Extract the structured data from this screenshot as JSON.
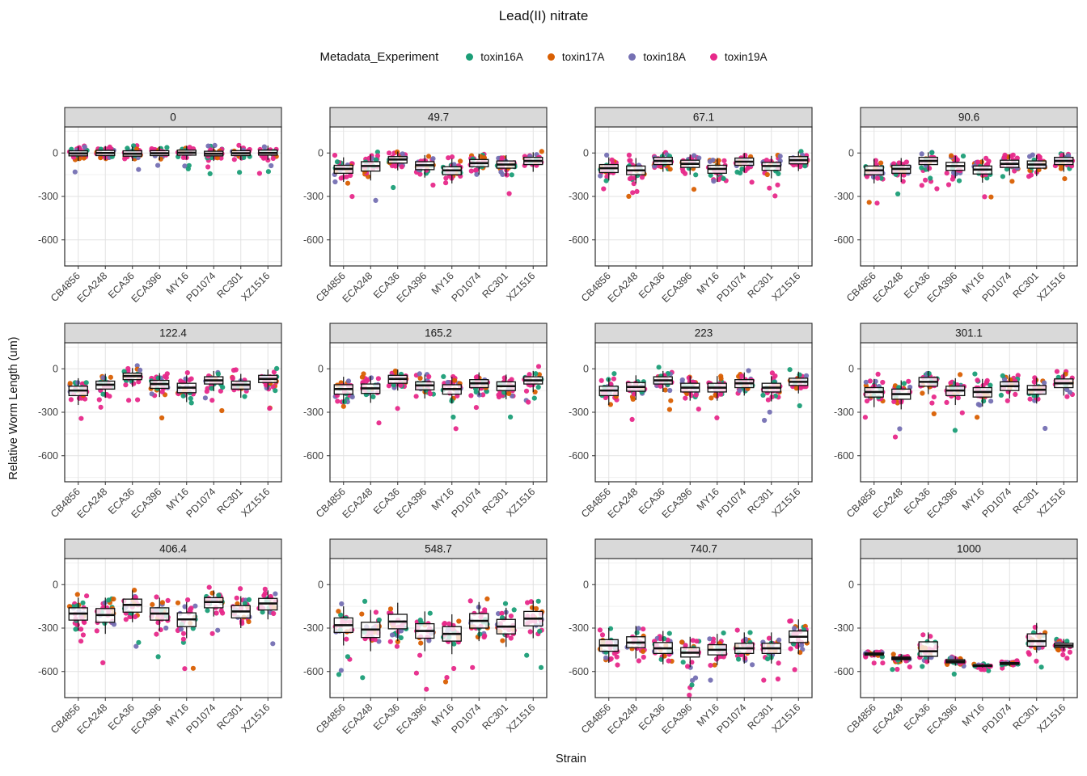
{
  "chart_data": {
    "type": "boxplot",
    "title": "Lead(II) nitrate",
    "xlabel": "Strain",
    "ylabel": "Relative Worm Length (um)",
    "legend": {
      "title": "Metadata_Experiment",
      "entries": [
        {
          "label": "toxin16A",
          "color": "#1B9E77"
        },
        {
          "label": "toxin17A",
          "color": "#D95F02"
        },
        {
          "label": "toxin18A",
          "color": "#7570B3"
        },
        {
          "label": "toxin19A",
          "color": "#E7298A"
        }
      ]
    },
    "strains": [
      "CB4856",
      "ECA248",
      "ECA36",
      "ECA396",
      "MY16",
      "PD1074",
      "RC301",
      "XZ1516"
    ],
    "yticks": [
      0,
      -300,
      -600
    ],
    "yticks_minor": [
      150,
      -150,
      -450,
      -750
    ],
    "ylim": [
      -780,
      180
    ],
    "grid": true,
    "stats_format": [
      "whisker_low",
      "q1",
      "median",
      "q3",
      "whisker_high"
    ],
    "facets": [
      {
        "label": "0",
        "stats": [
          [
            -55,
            -20,
            -3,
            15,
            45
          ],
          [
            -50,
            -18,
            0,
            18,
            48
          ],
          [
            -55,
            -22,
            -5,
            15,
            45
          ],
          [
            -50,
            -18,
            -2,
            16,
            46
          ],
          [
            -45,
            -15,
            2,
            20,
            50
          ],
          [
            -55,
            -20,
            -5,
            12,
            42
          ],
          [
            -50,
            -18,
            -2,
            16,
            46
          ],
          [
            -48,
            -15,
            0,
            20,
            50
          ]
        ]
      },
      {
        "label": "49.7",
        "stats": [
          [
            -200,
            -140,
            -110,
            -85,
            -30
          ],
          [
            -190,
            -125,
            -90,
            -60,
            -10
          ],
          [
            -120,
            -70,
            -45,
            -25,
            10
          ],
          [
            -170,
            -115,
            -85,
            -60,
            -15
          ],
          [
            -210,
            -150,
            -120,
            -95,
            -40
          ],
          [
            -150,
            -95,
            -70,
            -45,
            -5
          ],
          [
            -160,
            -105,
            -80,
            -55,
            -15
          ],
          [
            -130,
            -80,
            -55,
            -30,
            5
          ]
        ]
      },
      {
        "label": "67.1",
        "stats": [
          [
            -190,
            -135,
            -105,
            -80,
            -30
          ],
          [
            -210,
            -150,
            -120,
            -90,
            -35
          ],
          [
            -130,
            -80,
            -55,
            -30,
            5
          ],
          [
            -150,
            -100,
            -75,
            -50,
            -10
          ],
          [
            -200,
            -140,
            -110,
            -85,
            -35
          ],
          [
            -135,
            -85,
            -60,
            -35,
            0
          ],
          [
            -175,
            -120,
            -90,
            -65,
            -20
          ],
          [
            -125,
            -75,
            -50,
            -25,
            10
          ]
        ]
      },
      {
        "label": "90.6",
        "stats": [
          [
            -210,
            -150,
            -120,
            -90,
            -40
          ],
          [
            -200,
            -140,
            -110,
            -85,
            -35
          ],
          [
            -130,
            -80,
            -55,
            -30,
            5
          ],
          [
            -175,
            -120,
            -90,
            -65,
            -20
          ],
          [
            -205,
            -145,
            -115,
            -90,
            -40
          ],
          [
            -155,
            -100,
            -75,
            -50,
            -10
          ],
          [
            -160,
            -105,
            -80,
            -55,
            -15
          ],
          [
            -130,
            -80,
            -55,
            -30,
            5
          ]
        ]
      },
      {
        "label": "122.4",
        "stats": [
          [
            -250,
            -185,
            -150,
            -120,
            -65
          ],
          [
            -200,
            -140,
            -110,
            -85,
            -35
          ],
          [
            -125,
            -75,
            -50,
            -30,
            5
          ],
          [
            -195,
            -135,
            -105,
            -80,
            -30
          ],
          [
            -230,
            -165,
            -130,
            -100,
            -45
          ],
          [
            -155,
            -105,
            -80,
            -55,
            -15
          ],
          [
            -200,
            -140,
            -110,
            -85,
            -35
          ],
          [
            -145,
            -95,
            -70,
            -45,
            -5
          ]
        ]
      },
      {
        "label": "165.2",
        "stats": [
          [
            -240,
            -175,
            -140,
            -110,
            -55
          ],
          [
            -235,
            -170,
            -135,
            -105,
            -50
          ],
          [
            -150,
            -100,
            -70,
            -45,
            -5
          ],
          [
            -205,
            -145,
            -115,
            -90,
            -40
          ],
          [
            -240,
            -175,
            -140,
            -110,
            -55
          ],
          [
            -185,
            -130,
            -100,
            -75,
            -25
          ],
          [
            -210,
            -150,
            -120,
            -90,
            -40
          ],
          [
            -160,
            -105,
            -80,
            -55,
            -15
          ]
        ]
      },
      {
        "label": "223",
        "stats": [
          [
            -250,
            -185,
            -150,
            -120,
            -65
          ],
          [
            -215,
            -155,
            -125,
            -95,
            -45
          ],
          [
            -160,
            -105,
            -80,
            -55,
            -15
          ],
          [
            -220,
            -160,
            -130,
            -100,
            -50
          ],
          [
            -220,
            -160,
            -130,
            -100,
            -50
          ],
          [
            -185,
            -130,
            -100,
            -75,
            -25
          ],
          [
            -225,
            -160,
            -130,
            -100,
            -50
          ],
          [
            -170,
            -115,
            -90,
            -65,
            -20
          ]
        ]
      },
      {
        "label": "301.1",
        "stats": [
          [
            -265,
            -195,
            -160,
            -130,
            -70
          ],
          [
            -280,
            -210,
            -175,
            -140,
            -80
          ],
          [
            -175,
            -120,
            -90,
            -60,
            -15
          ],
          [
            -250,
            -185,
            -150,
            -120,
            -65
          ],
          [
            -260,
            -195,
            -160,
            -130,
            -70
          ],
          [
            -205,
            -150,
            -120,
            -90,
            -40
          ],
          [
            -240,
            -175,
            -145,
            -115,
            -60
          ],
          [
            -185,
            -130,
            -100,
            -70,
            -25
          ]
        ]
      },
      {
        "label": "406.4",
        "stats": [
          [
            -320,
            -245,
            -200,
            -160,
            -90
          ],
          [
            -340,
            -260,
            -210,
            -165,
            -90
          ],
          [
            -260,
            -190,
            -140,
            -100,
            -40
          ],
          [
            -320,
            -245,
            -200,
            -160,
            -90
          ],
          [
            -370,
            -290,
            -240,
            -195,
            -120
          ],
          [
            -220,
            -160,
            -120,
            -90,
            -40
          ],
          [
            -300,
            -230,
            -185,
            -145,
            -80
          ],
          [
            -240,
            -175,
            -130,
            -95,
            -40
          ]
        ]
      },
      {
        "label": "548.7",
        "stats": [
          [
            -420,
            -330,
            -280,
            -230,
            -150
          ],
          [
            -460,
            -365,
            -310,
            -260,
            -175
          ],
          [
            -390,
            -305,
            -255,
            -205,
            -125
          ],
          [
            -460,
            -370,
            -320,
            -270,
            -185
          ],
          [
            -480,
            -390,
            -340,
            -290,
            -205
          ],
          [
            -390,
            -300,
            -250,
            -200,
            -120
          ],
          [
            -430,
            -340,
            -290,
            -240,
            -160
          ],
          [
            -370,
            -285,
            -235,
            -185,
            -110
          ]
        ]
      },
      {
        "label": "740.7",
        "stats": [
          [
            -540,
            -460,
            -420,
            -380,
            -300
          ],
          [
            -510,
            -435,
            -400,
            -360,
            -285
          ],
          [
            -550,
            -475,
            -440,
            -400,
            -320
          ],
          [
            -570,
            -500,
            -470,
            -435,
            -360
          ],
          [
            -555,
            -485,
            -450,
            -415,
            -340
          ],
          [
            -545,
            -475,
            -440,
            -405,
            -330
          ],
          [
            -545,
            -475,
            -440,
            -405,
            -330
          ],
          [
            -480,
            -400,
            -360,
            -320,
            -240
          ]
        ]
      },
      {
        "label": "1000",
        "stats": [
          [
            -500,
            -487,
            -480,
            -472,
            -455
          ],
          [
            -535,
            -518,
            -510,
            -500,
            -480
          ],
          [
            -540,
            -495,
            -460,
            -395,
            -330
          ],
          [
            -560,
            -540,
            -530,
            -518,
            -495
          ],
          [
            -572,
            -565,
            -560,
            -555,
            -548
          ],
          [
            -560,
            -551,
            -545,
            -538,
            -525
          ],
          [
            -470,
            -425,
            -390,
            -340,
            -265
          ],
          [
            -455,
            -432,
            -420,
            -405,
            -375
          ]
        ]
      }
    ]
  },
  "style": {
    "strip_fill": "#d9d9d9",
    "panel_border": "#2b2b2b",
    "grid_major": "#e2e2e2",
    "grid_minor": "#f0f0f0",
    "tick_text": "#404040"
  }
}
